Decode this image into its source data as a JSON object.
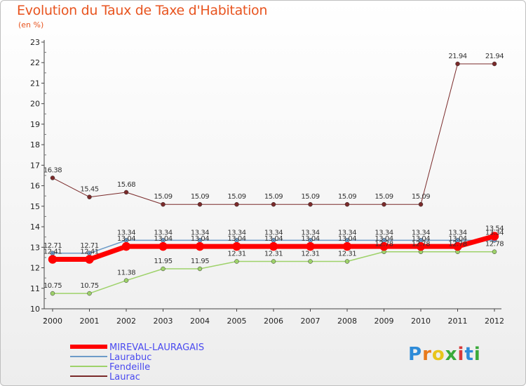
{
  "title": "Evolution du Taux de Taxe d'Habitation",
  "subtitle": "(en %)",
  "logo": "Proxiti",
  "chart_data": {
    "type": "line",
    "x": [
      "2000",
      "2001",
      "2002",
      "2003",
      "2004",
      "2005",
      "2006",
      "2007",
      "2008",
      "2009",
      "2010",
      "2011",
      "2012"
    ],
    "ylim": [
      10,
      23
    ],
    "yticks": [
      "10",
      "11",
      "12",
      "13",
      "14",
      "15",
      "16",
      "17",
      "18",
      "19",
      "20",
      "21",
      "22",
      "23"
    ],
    "grid": false,
    "legend_position": "bottom-left",
    "series": [
      {
        "name": "MIREVAL-LAURAGAIS",
        "color": "#ff0000",
        "width": 7,
        "values": [
          12.41,
          12.41,
          13.04,
          13.04,
          13.04,
          13.04,
          13.04,
          13.04,
          13.04,
          13.04,
          13.04,
          13.04,
          13.54
        ],
        "labels": [
          "12.41",
          "12.41",
          "13.04",
          "13.04",
          "13.04",
          "13.04",
          "13.04",
          "13.04",
          "13.04",
          "13.04",
          "13.04",
          "13.04",
          "13.54"
        ]
      },
      {
        "name": "Laurabuc",
        "color": "#6d9bc8",
        "width": 1.5,
        "values": [
          12.71,
          12.71,
          13.34,
          13.34,
          13.34,
          13.34,
          13.34,
          13.34,
          13.34,
          13.34,
          13.34,
          13.34,
          13.34
        ],
        "labels": [
          "12.71",
          "12.71",
          "13.34",
          "13.34",
          "13.34",
          "13.34",
          "13.34",
          "13.34",
          "13.34",
          "13.34",
          "13.34",
          "13.34",
          "13.34"
        ]
      },
      {
        "name": "Fendeille",
        "color": "#9ed26a",
        "width": 1.5,
        "values": [
          10.75,
          10.75,
          11.38,
          11.95,
          11.95,
          12.31,
          12.31,
          12.31,
          12.31,
          12.78,
          12.78,
          12.78,
          12.78
        ],
        "labels": [
          "10.75",
          "10.75",
          "11.38",
          "11.95",
          "11.95",
          "12.31",
          "12.31",
          "12.31",
          "12.31",
          "12.78",
          "12.78",
          "12.78",
          "12.78"
        ]
      },
      {
        "name": "Laurac",
        "color": "#7a2a2a",
        "width": 1,
        "values": [
          16.38,
          15.45,
          15.68,
          15.09,
          15.09,
          15.09,
          15.09,
          15.09,
          15.09,
          15.09,
          15.09,
          21.94,
          21.94
        ],
        "labels": [
          "16.38",
          "15.45",
          "15.68",
          "15.09",
          "15.09",
          "15.09",
          "15.09",
          "15.09",
          "15.09",
          "15.09",
          "15.09",
          "21.94",
          "21.94"
        ]
      }
    ]
  }
}
